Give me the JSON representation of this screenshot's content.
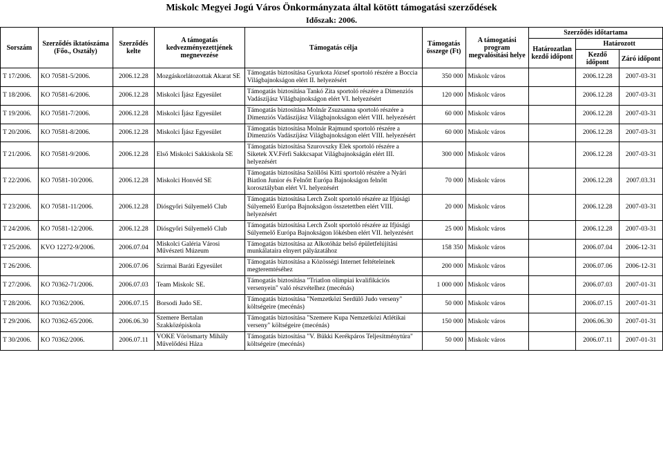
{
  "title": "Miskolc Megyei Jogú Város Önkormányzata által kötött támogatási szerződések",
  "period": "Időszak: 2006.",
  "header": {
    "sorszam": "Sorszám",
    "iktatoszam": "Szerződés iktatószáma (Főo., Osztály)",
    "kelte": "Szerződés kelte",
    "kedv": "A támogatás kedvezményezettjének megnevezése",
    "celja": "Támogatás célja",
    "osszeg": "Támogatás összege (Ft)",
    "hely": "A támogatási program megvalósítási helye",
    "idotartam": "Szerződés időtartama",
    "hatarozatlan": "Határozatlan kezdő időpont",
    "hatarozott": "Határozott",
    "kezdo": "Kezdő időpont",
    "zaro": "Záró időpont"
  },
  "rows": [
    {
      "sor": "T 17/2006.",
      "ikt": "KO 70581-5/2006.",
      "kelt": "2006.12.28",
      "kedv": "Mozgáskorlátozottak Akarat SE",
      "cel": "Támogatás biztosítása Gyurkota József sportoló részére a Boccia Világbajnokságon elért II. helyezésért",
      "oss": "350 000",
      "hely": "Miskolc város",
      "hatl": "",
      "kezd": "2006.12.28",
      "zaro": "2007-03-31"
    },
    {
      "sor": "T 18/2006.",
      "ikt": "KO 70581-6/2006.",
      "kelt": "2006.12.28",
      "kedv": "Miskolci Íjász Egyesület",
      "cel": "Támogatás biztosítása Tankó Zita sportoló részére a Dimenziós Vadászíjász Világbajnokságon elért VI. helyezésért",
      "oss": "120 000",
      "hely": "Miskolc város",
      "hatl": "",
      "kezd": "2006.12.28",
      "zaro": "2007-03-31"
    },
    {
      "sor": "T 19/2006.",
      "ikt": "KO 70581-7/2006.",
      "kelt": "2006.12.28",
      "kedv": "Miskolci Íjász Egyesület",
      "cel": "Támogatás biztosítása Molnár Zsuzsanna sportoló részére a Dimenziós Vadászíjász Világbajnokságon elért VIII. helyezésért",
      "oss": "60 000",
      "hely": "Miskolc város",
      "hatl": "",
      "kezd": "2006.12.28",
      "zaro": "2007-03-31"
    },
    {
      "sor": "T 20/2006.",
      "ikt": "KO 70581-8/2006.",
      "kelt": "2006.12.28",
      "kedv": "Miskolci Íjász Egyesület",
      "cel": "Támogatás biztosítása Molnár Rajmund sportoló részére a Dimenziós Vadászíjász Világbajnokságon elért VIII. helyezésért",
      "oss": "60 000",
      "hely": "Miskolc város",
      "hatl": "",
      "kezd": "2006.12.28",
      "zaro": "2007-03-31"
    },
    {
      "sor": "T 21/2006.",
      "ikt": "KO 70581-9/2006.",
      "kelt": "2006.12.28",
      "kedv": "Első Miskolci Sakkiskola SE",
      "cel": "Támogatás biztosítása Szurovszky Elek sportoló részére a Siketek XV.Férfi Sakkcsapat Világbajnokságán elért III. helyezésért",
      "oss": "300 000",
      "hely": "Miskolc város",
      "hatl": "",
      "kezd": "2006.12.28",
      "zaro": "2007-03-31"
    },
    {
      "sor": "T 22/2006.",
      "ikt": "KO 70581-10/2006.",
      "kelt": "2006.12.28",
      "kedv": "Miskolci Honvéd SE",
      "cel": "Támogatás biztosítása Szöllősi Kitti sportoló részére a Nyári Biatlon Junior és Felnőtt Európa Bajnokságon felnőtt korosztályban elért VI. helyezésért",
      "oss": "70 000",
      "hely": "Miskolc város",
      "hatl": "",
      "kezd": "2006.12.28",
      "zaro": "2007.03.31"
    },
    {
      "sor": "T 23/2006.",
      "ikt": "KO 70581-11/2006.",
      "kelt": "2006.12.28",
      "kedv": "Diósgyőri Súlyemelő Club",
      "cel": "Támogatás biztosítása Lerch Zsolt sportoló részére az Ifjúsági Súlyemelő Európa Bajnokságon összetettben elért VIII. helyezésért",
      "oss": "20 000",
      "hely": "Miskolc város",
      "hatl": "",
      "kezd": "2006.12.28",
      "zaro": "2007-03-31"
    },
    {
      "sor": "T 24/2006.",
      "ikt": "KO 70581-12/2006.",
      "kelt": "2006.12.28",
      "kedv": "Diósgyőri Súlyemelő Club",
      "cel": "Támogatás biztosítása Lerch Zsolt sportoló részére az Ifjúsági Súlyemelő Európa Bajnokságon lökésben elért VII. helyezésért",
      "oss": "25 000",
      "hely": "Miskolc város",
      "hatl": "",
      "kezd": "2006.12.28",
      "zaro": "2007-03-31"
    },
    {
      "sor": "T 25/2006.",
      "ikt": "KVO 12272-9/2006.",
      "kelt": "2006.07.04",
      "kedv": "Miskolci Galéria Városi Művészeti Múzeum",
      "cel": "Támogatás biztosítása az Alkotóház belső épületfelújítási munkálataira elnyert pályázatához",
      "oss": "158 350",
      "hely": "Miskolc város",
      "hatl": "",
      "kezd": "2006.07.04",
      "zaro": "2006-12-31"
    },
    {
      "sor": "T 26/2006.",
      "ikt": "",
      "kelt": "2006.07.06",
      "kedv": "Szirmai Baráti Egyesület",
      "cel": "Támogatás biztosítása a Közösségi Internet feltételeinek megteremtéséhez",
      "oss": "200 000",
      "hely": "Miskolc város",
      "hatl": "",
      "kezd": "2006.07.06",
      "zaro": "2006-12-31"
    },
    {
      "sor": "T 27/2006.",
      "ikt": "KO 70362-71/2006.",
      "kelt": "2006.07.03",
      "kedv": "Team Miskolc SE.",
      "cel": "Támogatás biztosítása \"Triatlon olimpiai kvalifikációs versenyein\" való részvételhez (mecénás)",
      "oss": "1 000 000",
      "hely": "Miskolc város",
      "hatl": "",
      "kezd": "2006.07.03",
      "zaro": "2007-01-31"
    },
    {
      "sor": "T 28/2006.",
      "ikt": "KO 70362/2006.",
      "kelt": "2006.07.15",
      "kedv": "Borsodi Judo SE.",
      "cel": "Támogatás biztosítása \"Nemzetközi Serdülő Judo verseny\" költségeire (mecénás)",
      "oss": "50 000",
      "hely": "Miskolc város",
      "hatl": "",
      "kezd": "2006.07.15",
      "zaro": "2007-01-31"
    },
    {
      "sor": "T 29/2006.",
      "ikt": "KO 70362-65/2006.",
      "kelt": "2006.06.30",
      "kedv": "Szemere Bertalan Szakközépiskola",
      "cel": "Támogatás biztosítása \"Szemere Kupa Nemzetközi Atlétikai verseny\" költségeire (mecénás)",
      "oss": "150 000",
      "hely": "Miskolc város",
      "hatl": "",
      "kezd": "2006.06.30",
      "zaro": "2007-01-31"
    },
    {
      "sor": "T 30/2006.",
      "ikt": "KO 70362/2006.",
      "kelt": "2006.07.11",
      "kedv": "VOKE Vörösmarty Mihály Művelődési Háza",
      "cel": "Támogatás biztosítása \"V. Bükki Kerékpáros Teljesítménytúra\" költségeire (mecénás)",
      "oss": "50 000",
      "hely": "Miskolc város",
      "hatl": "",
      "kezd": "2006.07.11",
      "zaro": "2007-01-31"
    }
  ]
}
